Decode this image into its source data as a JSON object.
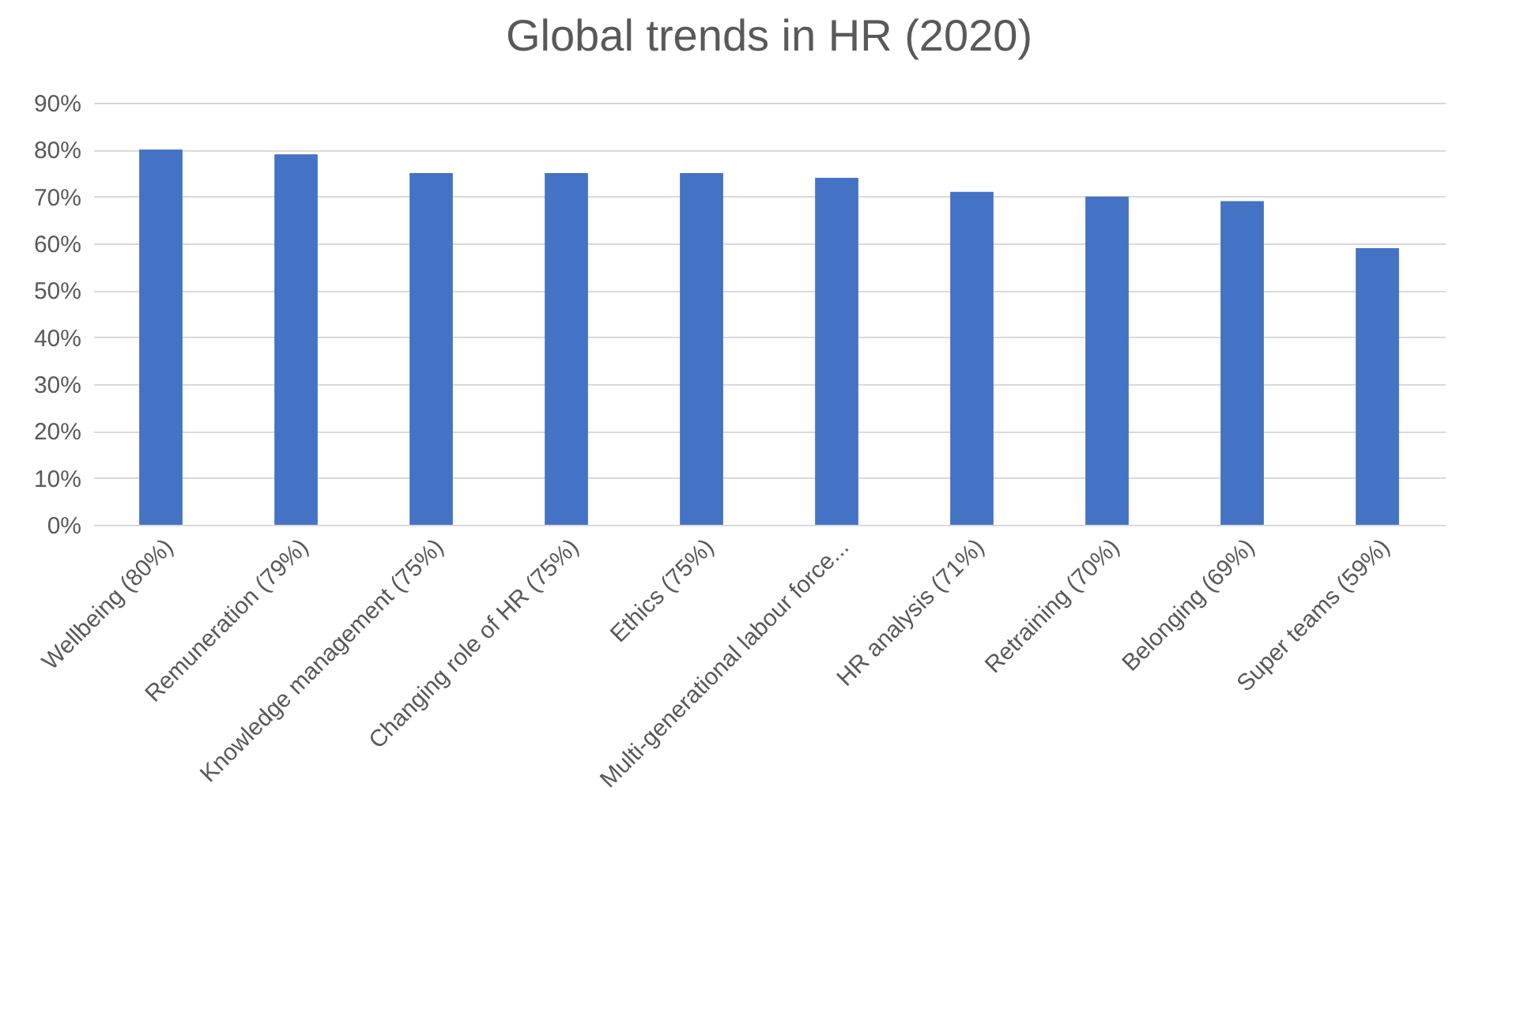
{
  "chart_data": {
    "type": "bar",
    "title": "Global trends in HR (2020)",
    "categories": [
      "Wellbeing (80%)",
      "Remuneration (79%)",
      "Knowledge management (75%)",
      "Changing role of HR (75%)",
      "Ethics (75%)",
      "Multi-generational labour force...",
      "HR analysis (71%)",
      "Retraining (70%)",
      "Belonging (69%)",
      "Super teams (59%)"
    ],
    "values": [
      80,
      79,
      75,
      75,
      75,
      74,
      71,
      70,
      69,
      59
    ],
    "color": "#4472c4",
    "ylim": [
      0,
      90
    ],
    "yticks": [
      {
        "value": 0,
        "label": "0%"
      },
      {
        "value": 10,
        "label": "10%"
      },
      {
        "value": 20,
        "label": "20%"
      },
      {
        "value": 30,
        "label": "30%"
      },
      {
        "value": 40,
        "label": "40%"
      },
      {
        "value": 50,
        "label": "50%"
      },
      {
        "value": 60,
        "label": "60%"
      },
      {
        "value": 70,
        "label": "70%"
      },
      {
        "value": 80,
        "label": "80%"
      },
      {
        "value": 90,
        "label": "90%"
      }
    ],
    "grid": "y"
  }
}
